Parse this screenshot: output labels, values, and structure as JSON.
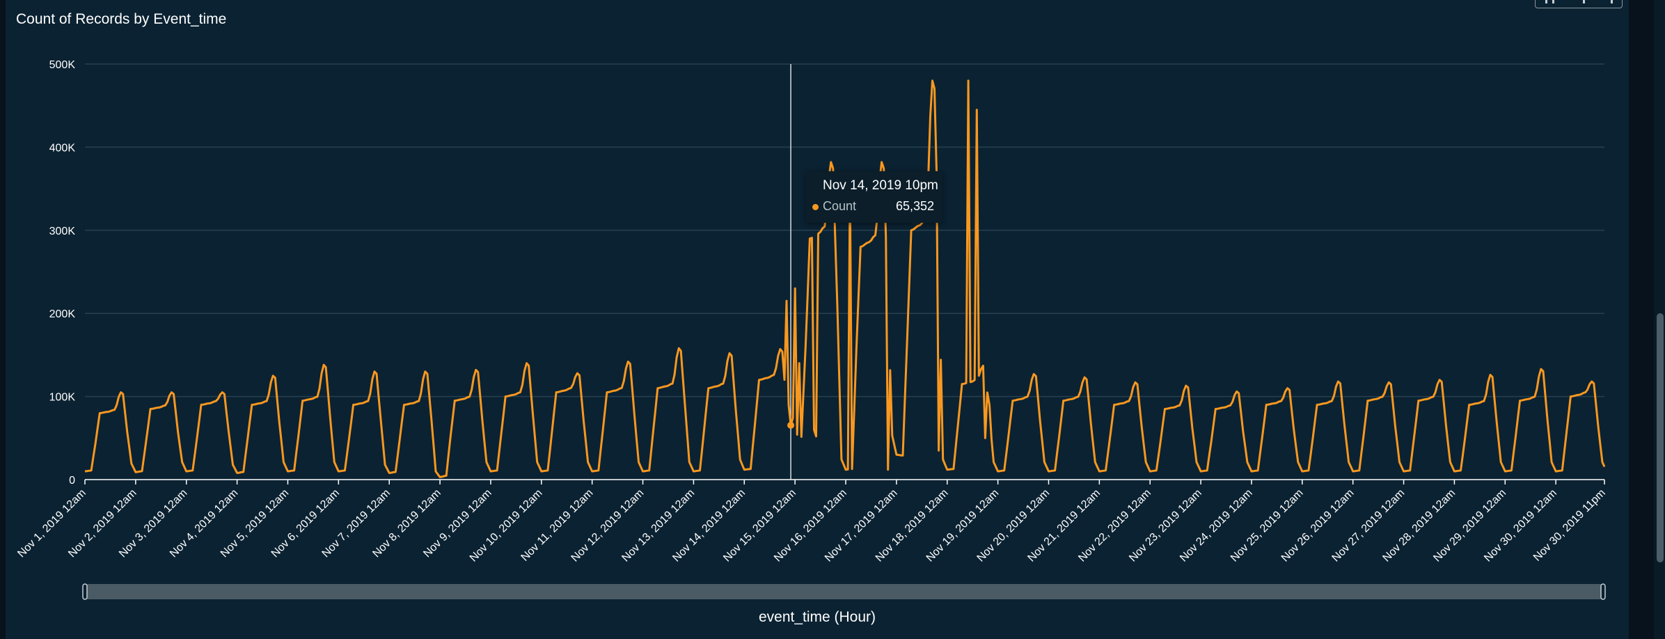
{
  "chart_data": {
    "type": "line",
    "title": "Count of Records by Event_time",
    "xlabel": "event_time (Hour)",
    "ylabel": "",
    "ylim": [
      0,
      500000
    ],
    "yticks": [
      0,
      100000,
      200000,
      300000,
      400000,
      500000
    ],
    "ytick_labels": [
      "0",
      "100K",
      "200K",
      "300K",
      "400K",
      "500K"
    ],
    "x_range": [
      "Nov 1, 2019 12am",
      "Nov 30, 2019 11pm"
    ],
    "x_granularity": "hour",
    "xtick_labels": [
      "Nov 1, 2019 12am",
      "Nov 2, 2019 12am",
      "Nov 3, 2019 12am",
      "Nov 4, 2019 12am",
      "Nov 5, 2019 12am",
      "Nov 6, 2019 12am",
      "Nov 7, 2019 12am",
      "Nov 8, 2019 12am",
      "Nov 9, 2019 12am",
      "Nov 10, 2019 12am",
      "Nov 11, 2019 12am",
      "Nov 12, 2019 12am",
      "Nov 13, 2019 12am",
      "Nov 14, 2019 12am",
      "Nov 15, 2019 12am",
      "Nov 16, 2019 12am",
      "Nov 17, 2019 12am",
      "Nov 18, 2019 12am",
      "Nov 19, 2019 12am",
      "Nov 20, 2019 12am",
      "Nov 21, 2019 12am",
      "Nov 22, 2019 12am",
      "Nov 23, 2019 12am",
      "Nov 24, 2019 12am",
      "Nov 25, 2019 12am",
      "Nov 26, 2019 12am",
      "Nov 27, 2019 12am",
      "Nov 28, 2019 12am",
      "Nov 29, 2019 12am",
      "Nov 30, 2019 12am",
      "Nov 30, 2019 11pm"
    ],
    "grid": true,
    "legend": "none",
    "series": [
      {
        "color": "#f89820",
        "daily_profile": {
          "day": [
            "Nov 1",
            "Nov 2",
            "Nov 3",
            "Nov 4",
            "Nov 5",
            "Nov 6",
            "Nov 7",
            "Nov 8",
            "Nov 9",
            "Nov 10",
            "Nov 11",
            "Nov 12",
            "Nov 13",
            "Nov 14",
            "Nov 15",
            "Nov 16",
            "Nov 17",
            "Nov 18",
            "Nov 19",
            "Nov 20",
            "Nov 21",
            "Nov 22",
            "Nov 23",
            "Nov 24",
            "Nov 25",
            "Nov 26",
            "Nov 27",
            "Nov 28",
            "Nov 29",
            "Nov 30"
          ],
          "night_min": [
            10000,
            9000,
            10000,
            8000,
            10000,
            10000,
            8000,
            3000,
            10000,
            10000,
            10000,
            10000,
            10000,
            12000,
            55000,
            12000,
            30000,
            12000,
            10000,
            10000,
            10000,
            10000,
            10000,
            10000,
            10000,
            10000,
            10000,
            10000,
            10000,
            10000
          ],
          "daytime_level": [
            80000,
            85000,
            90000,
            90000,
            95000,
            90000,
            90000,
            95000,
            100000,
            105000,
            105000,
            110000,
            110000,
            120000,
            290000,
            280000,
            300000,
            115000,
            95000,
            95000,
            90000,
            85000,
            85000,
            90000,
            90000,
            95000,
            95000,
            90000,
            95000,
            100000
          ],
          "evening_peak": [
            105000,
            105000,
            105000,
            125000,
            138000,
            130000,
            130000,
            132000,
            140000,
            128000,
            142000,
            158000,
            152000,
            157000,
            382000,
            382000,
            480000,
            137000,
            127000,
            123000,
            117000,
            113000,
            106000,
            110000,
            118000,
            117000,
            120000,
            126000,
            133000,
            118000
          ]
        }
      }
    ],
    "annotations": [
      "Nov 18, 2019 12am (drop to ~50K)"
    ],
    "hover_x": "Nov 14, 2019 10pm",
    "hover_value": 65352
  },
  "tooltip": {
    "title": "Nov 14, 2019 10pm",
    "label": "Count",
    "value": "65,352"
  }
}
